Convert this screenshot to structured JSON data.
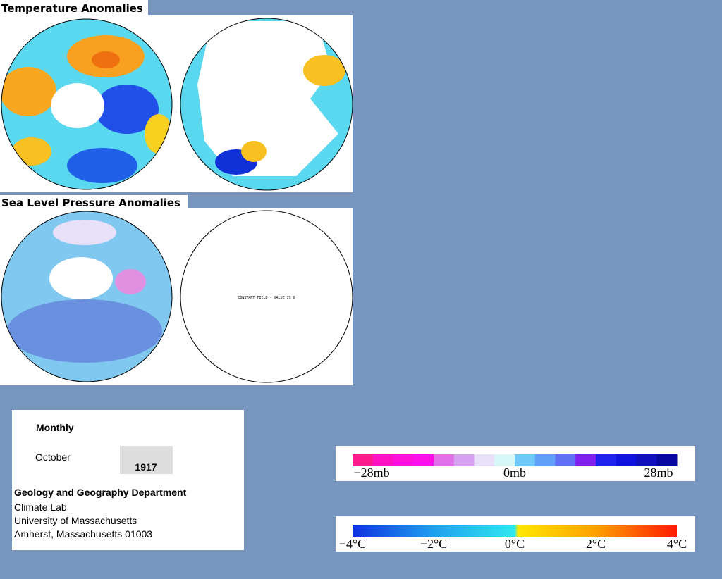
{
  "header": {
    "temperature_title": "Temperature Anomalies",
    "pressure_title": "Sea Level Pressure Anomalies"
  },
  "maps": {
    "constant_field_note": "CONSTANT FIELD - VALUE IS 0"
  },
  "info": {
    "frequency": "Monthly",
    "month": "October",
    "year": "1917",
    "department": "Geology and Geography Department",
    "lines": [
      "Climate Lab",
      "University of Massachusetts",
      "Amherst, Massachusetts 01003"
    ]
  },
  "legends": {
    "pressure": {
      "labels": [
        "−28mb",
        "0mb",
        "28mb"
      ]
    },
    "temperature": {
      "labels": [
        "−4°C",
        "−2°C",
        "0°C",
        "2°C",
        "4°C"
      ]
    }
  }
}
